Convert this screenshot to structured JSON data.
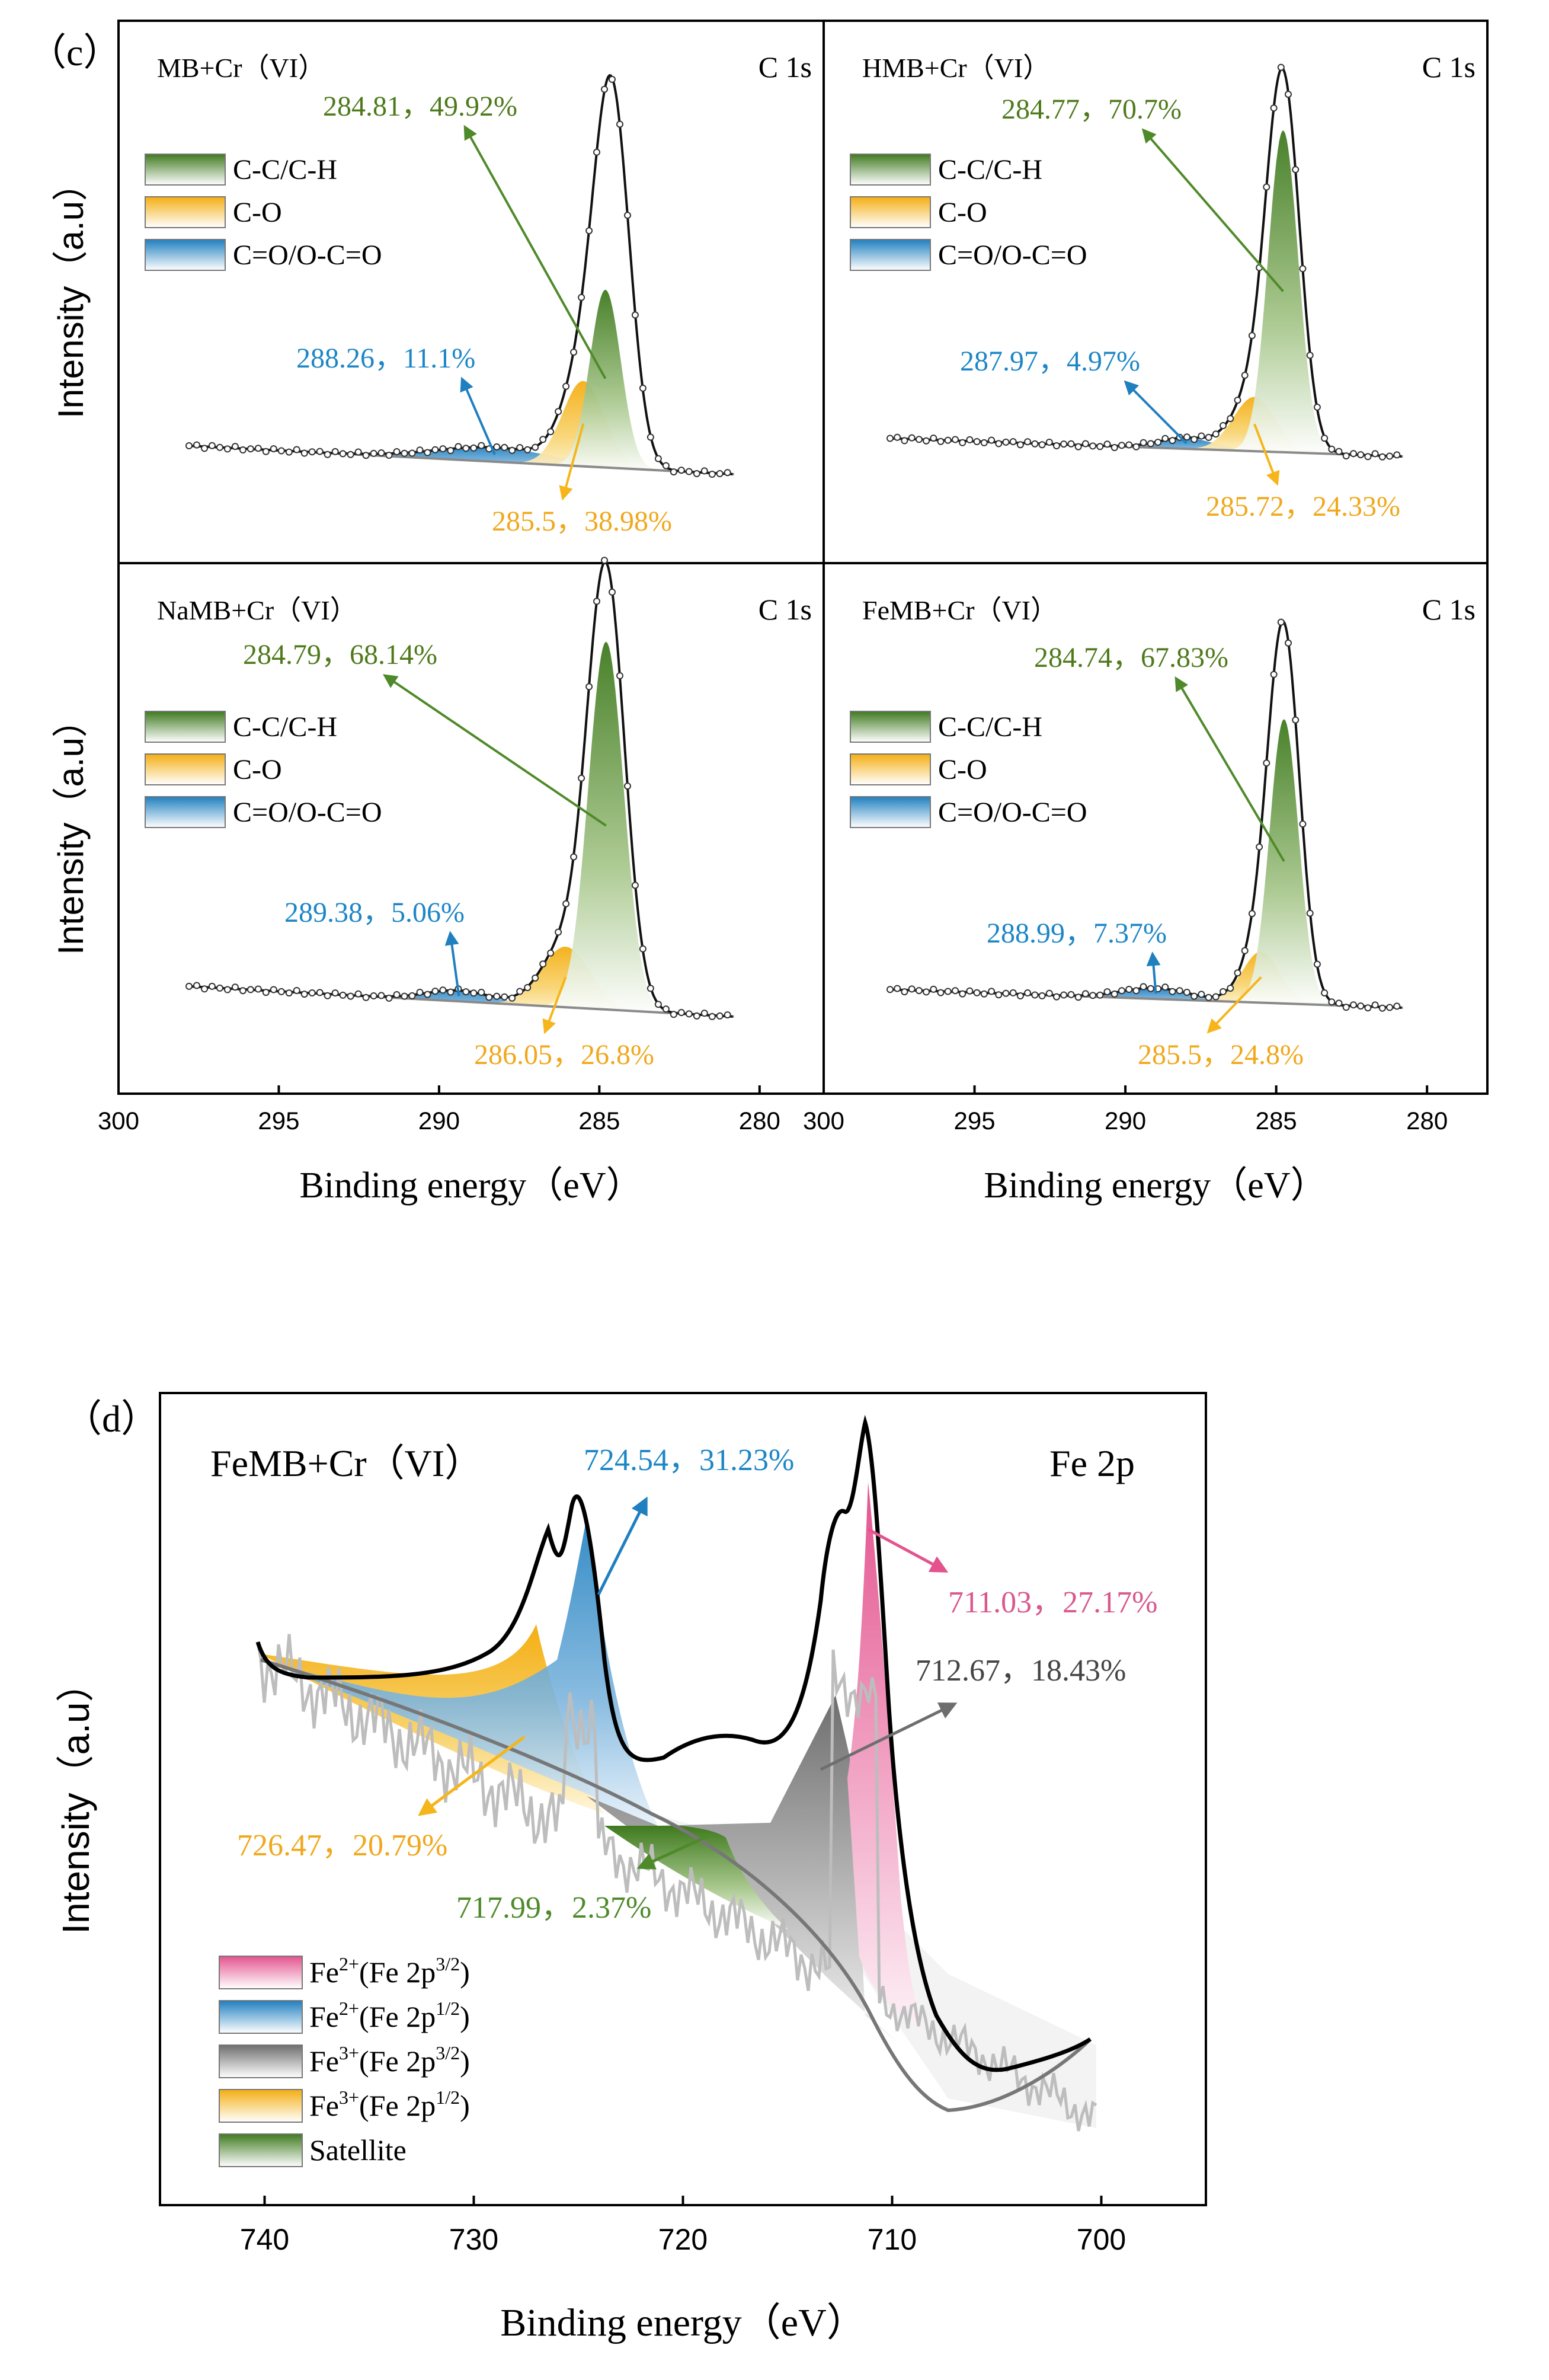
{
  "panel_c_label": "（c）",
  "panel_d_label": "（d）",
  "colors": {
    "green": "#4f8a2a",
    "orange": "#f6b51a",
    "blue": "#1f7fbf",
    "pink": "#e3548f",
    "grey": "#6e6e6e",
    "label_green": "#4f7a1c",
    "label_blue": "#1d86c6",
    "label_orange": "#f0a81c",
    "label_pink": "#d9588e",
    "label_grey": "#444444"
  },
  "chart_data": [
    {
      "id": "MB",
      "type": "area",
      "title": "MB+Cr（VI）",
      "corner_label": "C 1s",
      "ylabel": "Intensity（a.u）",
      "xlabel": "",
      "xlim": [
        300,
        278
      ],
      "xticks": [],
      "show_ylabel": true,
      "legend": [
        "C-C/C-H",
        "C-O",
        "C=O/O-C=O"
      ],
      "baseline": {
        "x_start": 297.8,
        "x_end": 280.8,
        "y_start": 0.08,
        "y_end": 0.0
      },
      "peaks": [
        {
          "name": "C-C/C-H",
          "center": 284.81,
          "height": 0.5,
          "width": 0.48,
          "area_percent": 49.92,
          "label": "284.81，49.92%"
        },
        {
          "name": "C-O",
          "center": 285.5,
          "height": 0.24,
          "width": 0.65,
          "area_percent": 38.98,
          "label": "285.5，38.98%"
        },
        {
          "name": "C=O/O-C=O",
          "center": 288.26,
          "height": 0.04,
          "width": 1.8,
          "area_percent": 11.1,
          "label": "288.26，11.1%"
        }
      ],
      "envelope_peak": {
        "center": 284.6,
        "height": 1.0,
        "width": 0.55
      }
    },
    {
      "id": "HMB",
      "type": "area",
      "title": "HMB+Cr（VI）",
      "corner_label": "C 1s",
      "ylabel": "",
      "xlabel": "",
      "xlim": [
        300,
        278
      ],
      "xticks": [],
      "show_ylabel": false,
      "legend": [
        "C-C/C-H",
        "C-O",
        "C=O/O-C=O"
      ],
      "baseline": {
        "x_start": 297.8,
        "x_end": 280.8,
        "y_start": 0.05,
        "y_end": 0.0
      },
      "peaks": [
        {
          "name": "C-C/C-H",
          "center": 284.77,
          "height": 0.89,
          "width": 0.5,
          "area_percent": 70.7,
          "label": "284.77，70.7%"
        },
        {
          "name": "C-O",
          "center": 285.72,
          "height": 0.15,
          "width": 0.7,
          "area_percent": 24.33,
          "label": "285.72，24.33%"
        },
        {
          "name": "C=O/O-C=O",
          "center": 287.97,
          "height": 0.03,
          "width": 0.9,
          "area_percent": 4.97,
          "label": "287.97，4.97%"
        }
      ],
      "envelope_peak": {
        "center": 284.77,
        "height": 1.0,
        "width": 0.55
      }
    },
    {
      "id": "NaMB",
      "type": "area",
      "title": "NaMB+Cr（VI）",
      "corner_label": "C 1s",
      "ylabel": "Intensity（a.u）",
      "xlabel": "Binding energy（eV）",
      "xlim": [
        300,
        278
      ],
      "xticks": [
        300,
        295,
        290,
        285,
        280
      ],
      "show_ylabel": true,
      "legend": [
        "C-C/C-H",
        "C-O",
        "C=O/O-C=O"
      ],
      "baseline": {
        "x_start": 297.8,
        "x_end": 280.8,
        "y_start": 0.07,
        "y_end": 0.0
      },
      "peaks": [
        {
          "name": "C-C/C-H",
          "center": 284.79,
          "height": 0.85,
          "width": 0.55,
          "area_percent": 68.14,
          "label": "284.79，68.14%"
        },
        {
          "name": "C-O",
          "center": 286.05,
          "height": 0.14,
          "width": 0.75,
          "area_percent": 26.8,
          "label": "286.05，26.8%"
        },
        {
          "name": "C=O/O-C=O",
          "center": 289.38,
          "height": 0.025,
          "width": 1.0,
          "area_percent": 5.06,
          "label": "289.38，5.06%"
        }
      ],
      "envelope_peak": {
        "center": 284.79,
        "height": 1.0,
        "width": 0.58
      }
    },
    {
      "id": "FeMB",
      "type": "area",
      "title": "FeMB+Cr（VI）",
      "corner_label": "C 1s",
      "ylabel": "",
      "xlabel": "Binding energy（eV）",
      "xlim": [
        300,
        278
      ],
      "xticks": [
        300,
        295,
        290,
        285,
        280
      ],
      "show_ylabel": false,
      "legend": [
        "C-C/C-H",
        "C-O",
        "C=O/O-C=O"
      ],
      "baseline": {
        "x_start": 297.8,
        "x_end": 280.8,
        "y_start": 0.05,
        "y_end": 0.0
      },
      "peaks": [
        {
          "name": "C-C/C-H",
          "center": 284.74,
          "height": 0.78,
          "width": 0.48,
          "area_percent": 67.83,
          "label": "284.74，67.83%"
        },
        {
          "name": "C-O",
          "center": 285.5,
          "height": 0.14,
          "width": 0.62,
          "area_percent": 24.8,
          "label": "285.5，24.8%"
        },
        {
          "name": "C=O/O-C=O",
          "center": 288.99,
          "height": 0.03,
          "width": 1.1,
          "area_percent": 7.37,
          "label": "288.99，7.37%"
        }
      ],
      "envelope_peak": {
        "center": 284.74,
        "height": 0.98,
        "width": 0.52
      }
    },
    {
      "id": "Fe2p",
      "type": "area",
      "title": "FeMB+Cr（VI）",
      "corner_label": "Fe 2p",
      "ylabel": "Intensity（a.u）",
      "xlabel": "Binding energy（eV）",
      "xlim": [
        745,
        695
      ],
      "xticks": [
        740,
        730,
        720,
        710,
        700
      ],
      "legend": [
        {
          "base": "Fe",
          "sup": "2+",
          "mid": "(Fe 2p",
          "sup2": "3/2",
          "end": ")"
        },
        {
          "base": "Fe",
          "sup": "2+",
          "mid": "(Fe 2p",
          "sup2": "1/2",
          "end": ")"
        },
        {
          "base": "Fe",
          "sup": "3+",
          "mid": "(Fe 2p",
          "sup2": "3/2",
          "end": ")"
        },
        {
          "base": "Fe",
          "sup": "3+",
          "mid": "(Fe 2p",
          "sup2": "1/2",
          "end": ")"
        },
        {
          "base": "Satellite",
          "sup": "",
          "mid": "",
          "sup2": "",
          "end": ""
        }
      ],
      "peaks": [
        {
          "name": "Fe2+(Fe 2p3/2)",
          "center": 711.03,
          "height": 1.0,
          "area_percent": 27.17,
          "label": "711.03，27.17%"
        },
        {
          "name": "Fe2+(Fe 2p1/2)",
          "center": 724.54,
          "height": 0.9,
          "area_percent": 31.23,
          "label": "724.54，31.23%"
        },
        {
          "name": "Fe3+(Fe 2p3/2)",
          "center": 712.67,
          "height": 0.75,
          "area_percent": 18.43,
          "label": "712.67，18.43%"
        },
        {
          "name": "Fe3+(Fe 2p1/2)",
          "center": 726.47,
          "height": 0.6,
          "area_percent": 20.79,
          "label": "726.47，20.79%"
        },
        {
          "name": "Satellite",
          "center": 717.99,
          "height": 0.2,
          "area_percent": 2.37,
          "label": "717.99，2.37%"
        }
      ]
    }
  ]
}
